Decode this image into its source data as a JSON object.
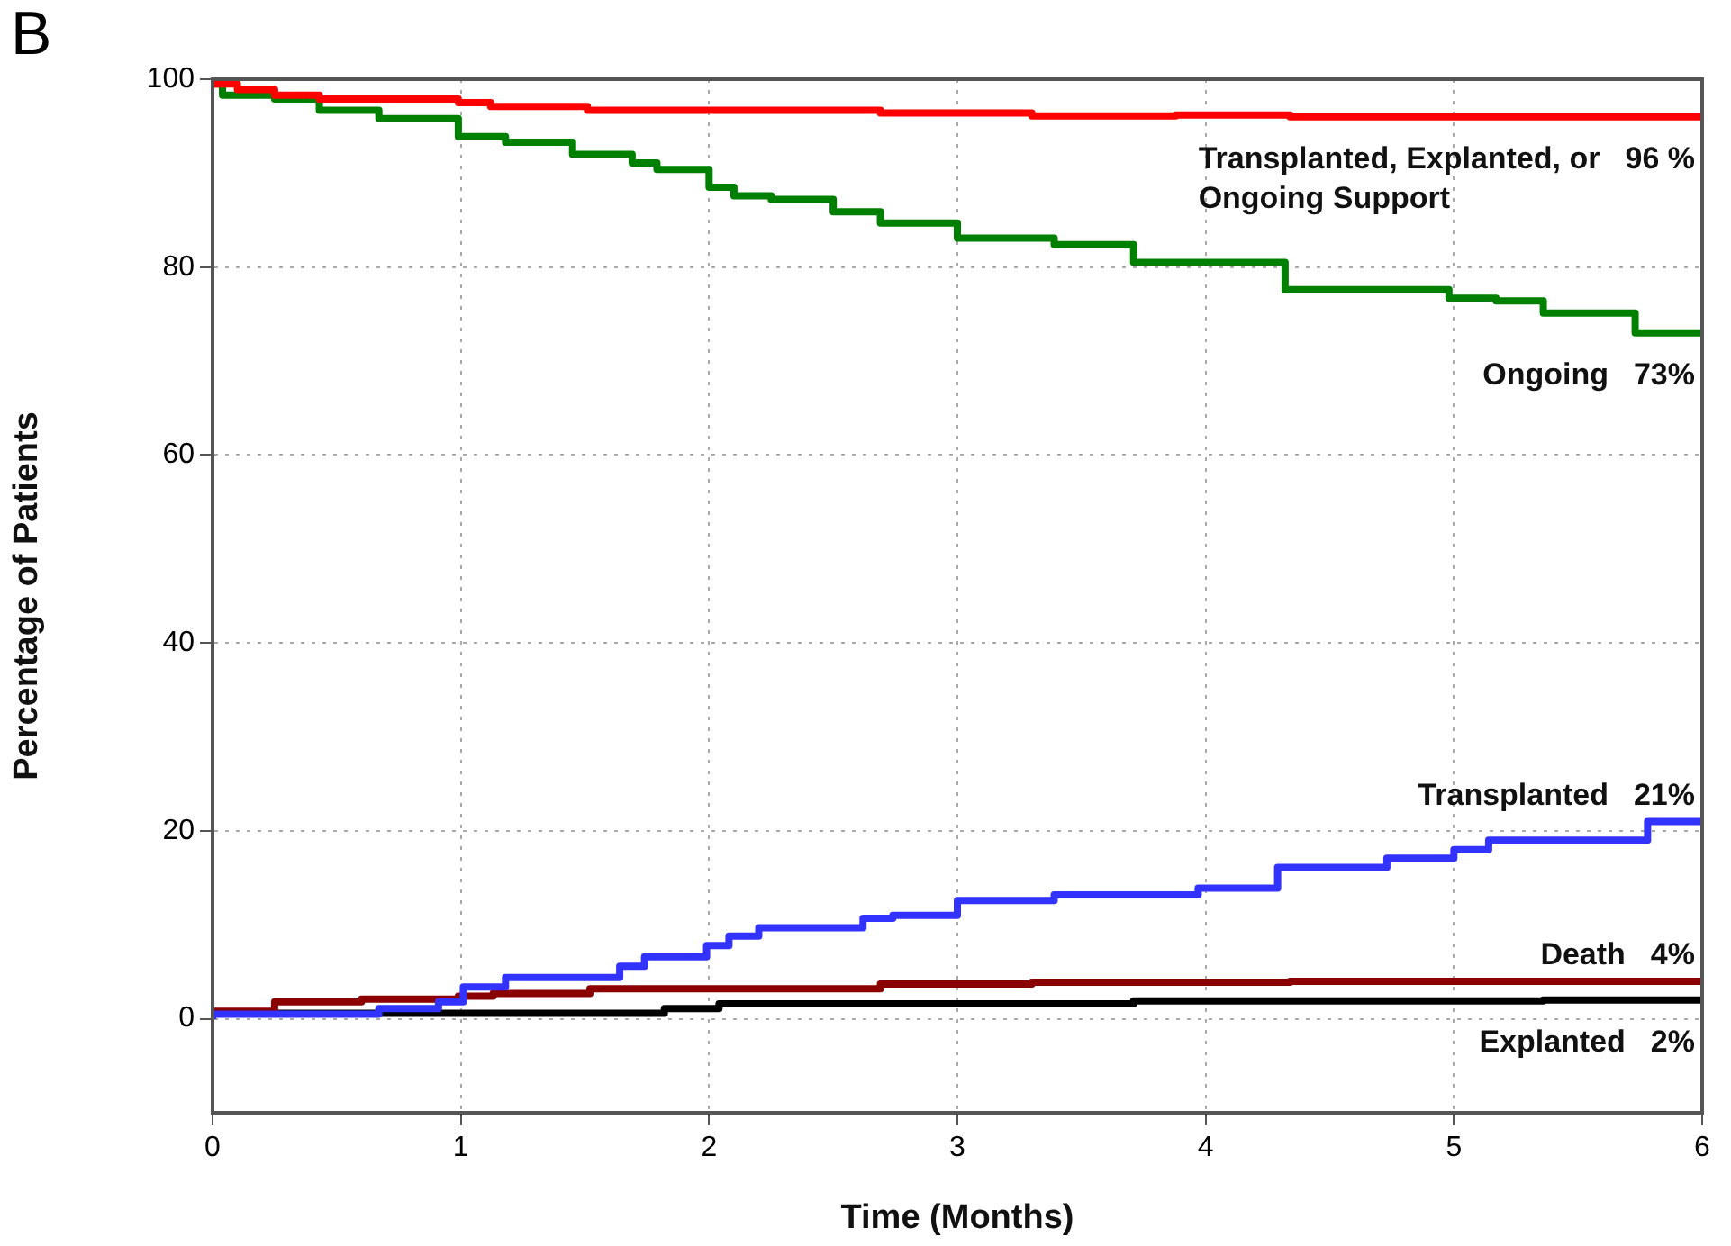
{
  "chart_data": {
    "type": "step",
    "xlabel": "Time (Months)",
    "ylabel": "Percentage of Patients",
    "annotations": [
      "B"
    ],
    "xlim": [
      0,
      6
    ],
    "ylim": [
      -10,
      100
    ],
    "xticks": [
      0,
      1,
      2,
      3,
      4,
      5,
      6
    ],
    "yticks": [
      0,
      20,
      40,
      60,
      80,
      100
    ],
    "grid": true,
    "legend": false,
    "line_style": "solid",
    "marker": "none",
    "series": [
      {
        "name": "Transplanted, Explanted, or Ongoing Support",
        "color": "#ff0000",
        "x": [
          0,
          0.1,
          0.25,
          0.43,
          0.99,
          1.12,
          1.51,
          2.69,
          3.3,
          3.88,
          4.34,
          5.85,
          6
        ],
        "values": [
          100,
          99.5,
          98.9,
          98.3,
          97.9,
          97.5,
          97.1,
          96.7,
          96.4,
          96.1,
          96.2,
          96,
          96
        ],
        "value_labels": [
          null,
          null,
          null,
          null,
          null,
          null,
          null,
          null,
          null,
          null,
          null,
          null,
          "96 %"
        ]
      },
      {
        "name": "Ongoing",
        "color": "#008000",
        "x": [
          0,
          0.04,
          0.25,
          0.43,
          0.67,
          0.99,
          1.18,
          1.45,
          1.69,
          1.79,
          2.0,
          2.1,
          2.25,
          2.5,
          2.69,
          3.0,
          3.39,
          3.71,
          4.32,
          4.98,
          5.17,
          5.36,
          5.73,
          6
        ],
        "values": [
          100,
          99.5,
          98.3,
          97.9,
          96.7,
          95.8,
          93.9,
          93.3,
          92,
          91.1,
          90.4,
          88.5,
          87.6,
          87.2,
          85.9,
          84.7,
          83.1,
          82.4,
          80.5,
          77.6,
          76.7,
          76.4,
          75.1,
          73
        ],
        "value_labels": [
          null,
          null,
          null,
          null,
          null,
          null,
          null,
          null,
          null,
          null,
          null,
          null,
          null,
          null,
          null,
          null,
          null,
          null,
          null,
          null,
          null,
          null,
          null,
          "73%"
        ]
      },
      {
        "name": "Transplanted",
        "color": "#3333ff",
        "x": [
          0,
          0.67,
          0.91,
          1.01,
          1.18,
          1.64,
          1.74,
          1.99,
          2.08,
          2.2,
          2.62,
          2.74,
          3.0,
          3.39,
          3.97,
          4.29,
          4.73,
          5.0,
          5.14,
          5.78,
          6
        ],
        "values": [
          0,
          0.5,
          1.1,
          1.8,
          3.4,
          4.4,
          5.6,
          6.6,
          7.8,
          8.8,
          9.7,
          10.7,
          11.0,
          12.6,
          13.2,
          13.9,
          16.1,
          17.1,
          18.0,
          19.0,
          21
        ],
        "value_labels": [
          null,
          null,
          null,
          null,
          null,
          null,
          null,
          null,
          null,
          null,
          null,
          null,
          null,
          null,
          null,
          null,
          null,
          null,
          null,
          null,
          "21%"
        ]
      },
      {
        "name": "Death",
        "color": "#8b0000",
        "x": [
          0,
          0.25,
          0.6,
          0.99,
          1.13,
          1.52,
          2.69,
          3.3,
          4.34,
          6
        ],
        "values": [
          0,
          0.8,
          1.8,
          2.1,
          2.4,
          2.7,
          3.2,
          3.7,
          3.9,
          4
        ],
        "value_labels": [
          null,
          null,
          null,
          null,
          null,
          null,
          null,
          null,
          null,
          "4%"
        ]
      },
      {
        "name": "Explanted",
        "color": "#000000",
        "x": [
          0,
          1.82,
          2.04,
          3.71,
          5.36,
          6
        ],
        "values": [
          0,
          0.6,
          1.1,
          1.6,
          1.9,
          2
        ],
        "value_labels": [
          null,
          null,
          null,
          null,
          null,
          "2%"
        ]
      }
    ]
  }
}
